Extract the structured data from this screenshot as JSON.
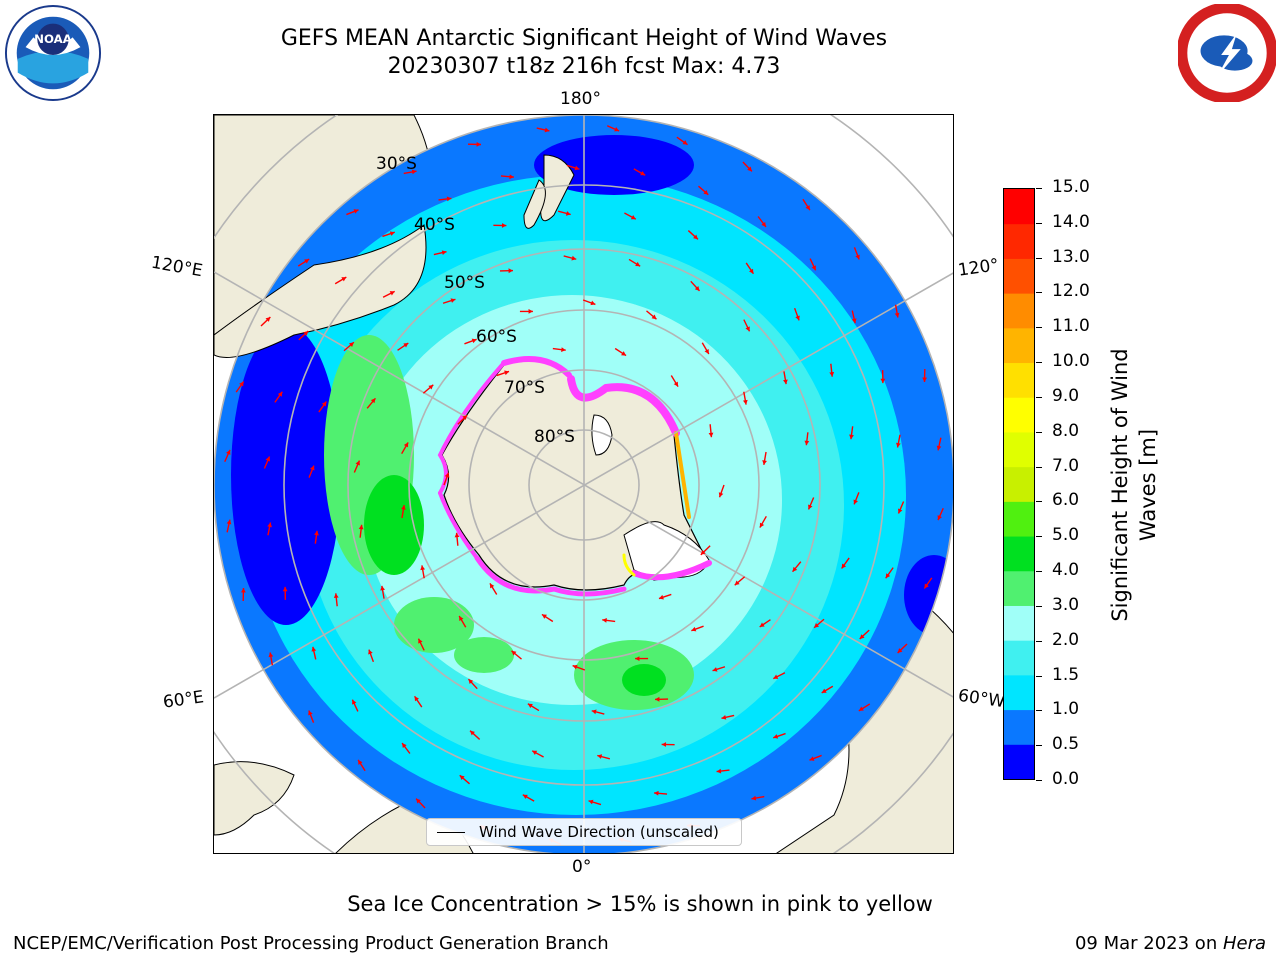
{
  "title_line1": "GEFS MEAN Antarctic Significant Height of Wind Waves",
  "title_line2": "20230307 t18z 216h fcst   Max: 4.73",
  "map": {
    "projection": "South Polar Stereographic",
    "lon_labels": [
      "180°",
      "120°E",
      "120°",
      "60°E",
      "60°W",
      "0°"
    ],
    "lat_labels": [
      "30°S",
      "40°S",
      "50°S",
      "60°S",
      "70°S",
      "80°S"
    ]
  },
  "colorbar": {
    "label": "Significant Height of Wind Waves [m]",
    "label_line1": "Significant Height of Wind",
    "label_line2": "Waves [m]",
    "ticks": [
      "0.0",
      "0.5",
      "1.0",
      "1.5",
      "2.0",
      "3.0",
      "4.0",
      "5.0",
      "6.0",
      "7.0",
      "8.0",
      "9.0",
      "10.0",
      "11.0",
      "12.0",
      "13.0",
      "14.0",
      "15.0"
    ],
    "colors": [
      "#0000ff",
      "#0a78ff",
      "#00e5ff",
      "#40f0f0",
      "#a0fff8",
      "#50f070",
      "#00e020",
      "#50f010",
      "#c8f000",
      "#e0ff00",
      "#ffff00",
      "#ffe000",
      "#ffb400",
      "#ff8c00",
      "#ff5000",
      "#ff2800",
      "#ff0000"
    ]
  },
  "legend": {
    "label": "Wind Wave Direction (unscaled)"
  },
  "sea_ice_note": "Sea Ice Concentration > 15% is shown in pink to yellow",
  "credit_left": "NCEP/EMC/Verification Post Processing Product Generation Branch",
  "credit_right_prefix": "09 Mar 2023 on ",
  "credit_right_host": "Hera",
  "logos": {
    "left": "NOAA",
    "left_icon": "noaa-logo-icon",
    "right": "National Weather Service",
    "right_icon": "nws-logo-icon"
  },
  "colors": {
    "land": "#efecda",
    "grid": "#b4b4b4",
    "arrow": "#ff0000"
  }
}
